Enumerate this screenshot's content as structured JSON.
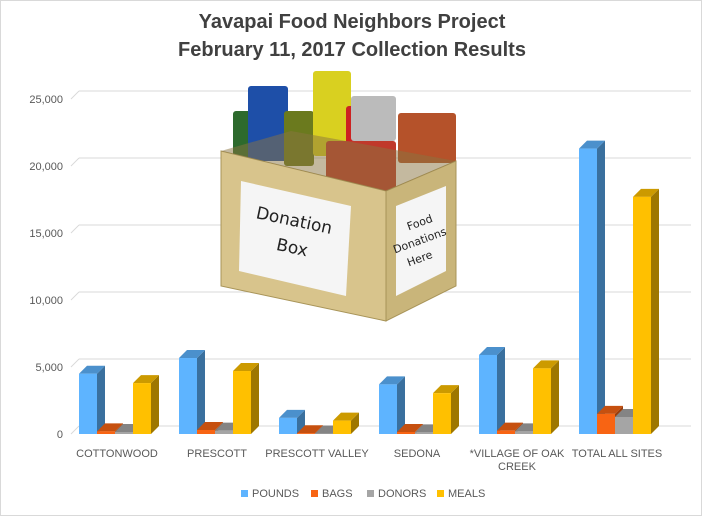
{
  "chart_data": {
    "type": "bar",
    "title": "Yavapai Food Neighbors Project",
    "subtitle": "February 11, 2017 Collection Results",
    "categories": [
      "COTTONWOOD",
      "PRESCOTT",
      "PRESCOTT VALLEY",
      "SEDONA",
      "*VILLAGE OF OAK CREEK",
      "TOTAL ALL SITES"
    ],
    "series": [
      {
        "name": "POUNDS",
        "color": "#5eb4ff",
        "values": [
          4500,
          5670,
          1200,
          3700,
          5900,
          21300
        ]
      },
      {
        "name": "BAGS",
        "color": "#f86413",
        "values": [
          200,
          300,
          60,
          150,
          250,
          1500
        ]
      },
      {
        "name": "DONORS",
        "color": "#a5a5a5",
        "values": [
          150,
          250,
          40,
          120,
          200,
          1270
        ]
      },
      {
        "name": "MEALS",
        "color": "#ffc000",
        "values": [
          3800,
          4700,
          1000,
          3050,
          4900,
          17700
        ]
      }
    ],
    "yticks": [
      "0",
      "5,000",
      "10,000",
      "15,000",
      "20,000",
      "25,000"
    ],
    "ylim": [
      0,
      25000
    ],
    "grid": true,
    "legend": "bottom",
    "three_d": true,
    "image": {
      "box_label": "Donation Box",
      "side_label": "Food Donations Here"
    }
  }
}
